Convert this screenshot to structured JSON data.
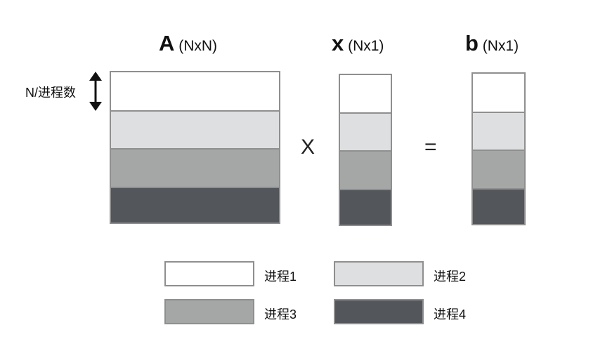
{
  "colors": {
    "p1": "#ffffff",
    "p2": "#dedfe0",
    "p3": "#a4a7a5",
    "p4": "#53565b",
    "border": "#8f8f8f"
  },
  "matrix_a": {
    "symbol": "A",
    "dims": "(NxN)"
  },
  "vector_x": {
    "symbol": "x",
    "dims": "(Nx1)"
  },
  "vector_b": {
    "symbol": "b",
    "dims": "(Nx1)"
  },
  "row_label": "N/进程数",
  "ops": {
    "multiply": "X",
    "equals": "="
  },
  "legend": [
    {
      "label": "进程1",
      "color": "#ffffff"
    },
    {
      "label": "进程2",
      "color": "#dedfe0"
    },
    {
      "label": "进程3",
      "color": "#a4a7a5"
    },
    {
      "label": "进程4",
      "color": "#53565b"
    }
  ]
}
